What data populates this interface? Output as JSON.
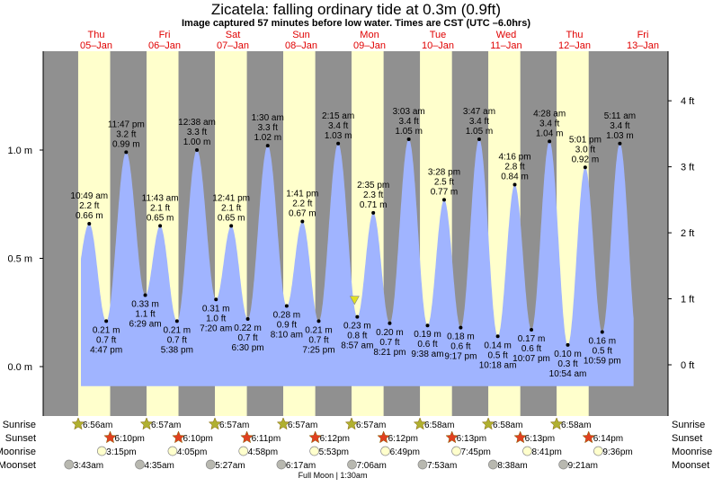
{
  "title": "Zicatela: falling  ordinary tide at 0.3m (0.9ft)",
  "subtitle": "Image captured 57 minutes before low water. Times are CST (UTC –6.0hrs)",
  "colors": {
    "night": "#909090",
    "day": "#ffffcc",
    "water": "#a0b4ff",
    "day_label": "#e00000",
    "sunrise": "#b0b030",
    "sunset": "#e04020",
    "moonrise": "#ffffcc",
    "moonset": "#b8b8b0",
    "marker": "#e0e020"
  },
  "chart_data": {
    "type": "area",
    "title": "Zicatela: falling  ordinary tide at 0.3m (0.9ft)",
    "x_units": "hours since Thu 05-Jan 00:00 CST",
    "days": [
      {
        "dow": "Thu",
        "date": "05–Jan"
      },
      {
        "dow": "Fri",
        "date": "06–Jan"
      },
      {
        "dow": "Sat",
        "date": "07–Jan"
      },
      {
        "dow": "Sun",
        "date": "08–Jan"
      },
      {
        "dow": "Mon",
        "date": "09–Jan"
      },
      {
        "dow": "Tue",
        "date": "10–Jan"
      },
      {
        "dow": "Wed",
        "date": "11–Jan"
      },
      {
        "dow": "Thu",
        "date": "12–Jan"
      },
      {
        "dow": "Fri",
        "date": "13–Jan"
      }
    ],
    "y_left": {
      "unit": "m",
      "ticks": [
        {
          "v": 0.0,
          "label": "0.0 m"
        },
        {
          "v": 0.5,
          "label": "0.5 m"
        },
        {
          "v": 1.0,
          "label": "1.0 m"
        }
      ],
      "range": [
        -0.22,
        1.45
      ]
    },
    "y_right": {
      "unit": "ft",
      "ticks": [
        {
          "v": 0,
          "label": "0 ft"
        },
        {
          "v": 1,
          "label": "1 ft"
        },
        {
          "v": 2,
          "label": "2 ft"
        },
        {
          "v": 3,
          "label": "3 ft"
        },
        {
          "v": 4,
          "label": "4 ft"
        }
      ]
    },
    "extremes": [
      {
        "day": 0,
        "time": "10:49 am",
        "ft": "2.2 ft",
        "m": "0.66 m",
        "v": 0.66,
        "type": "high"
      },
      {
        "day": 0,
        "time": "4:47 pm",
        "ft": "0.7 ft",
        "m": "0.21 m",
        "v": 0.21,
        "type": "low"
      },
      {
        "day": 0,
        "time": "11:47 pm",
        "ft": "3.2 ft",
        "m": "0.99 m",
        "v": 0.99,
        "type": "high"
      },
      {
        "day": 1,
        "time": "6:29 am",
        "ft": "1.1 ft",
        "m": "0.33 m",
        "v": 0.33,
        "type": "low"
      },
      {
        "day": 1,
        "time": "11:43 am",
        "ft": "2.1 ft",
        "m": "0.65 m",
        "v": 0.65,
        "type": "high"
      },
      {
        "day": 1,
        "time": "5:38 pm",
        "ft": "0.7 ft",
        "m": "0.21 m",
        "v": 0.21,
        "type": "low"
      },
      {
        "day": 2,
        "time": "12:38 am",
        "ft": "3.3 ft",
        "m": "1.00 m",
        "v": 1.0,
        "type": "high"
      },
      {
        "day": 2,
        "time": "7:20 am",
        "ft": "1.0 ft",
        "m": "0.31 m",
        "v": 0.31,
        "type": "low"
      },
      {
        "day": 2,
        "time": "12:41 pm",
        "ft": "2.1 ft",
        "m": "0.65 m",
        "v": 0.65,
        "type": "high"
      },
      {
        "day": 2,
        "time": "6:30 pm",
        "ft": "0.7 ft",
        "m": "0.22 m",
        "v": 0.22,
        "type": "low"
      },
      {
        "day": 3,
        "time": "1:30 am",
        "ft": "3.3 ft",
        "m": "1.02 m",
        "v": 1.02,
        "type": "high"
      },
      {
        "day": 3,
        "time": "8:10 am",
        "ft": "0.9 ft",
        "m": "0.28 m",
        "v": 0.28,
        "type": "low"
      },
      {
        "day": 3,
        "time": "1:41 pm",
        "ft": "2.2 ft",
        "m": "0.67 m",
        "v": 0.67,
        "type": "high"
      },
      {
        "day": 3,
        "time": "7:25 pm",
        "ft": "0.7 ft",
        "m": "0.21 m",
        "v": 0.21,
        "type": "low"
      },
      {
        "day": 4,
        "time": "2:15 am",
        "ft": "3.4 ft",
        "m": "1.03 m",
        "v": 1.03,
        "type": "high"
      },
      {
        "day": 4,
        "time": "8:57 am",
        "ft": "0.8 ft",
        "m": "0.23 m",
        "v": 0.23,
        "type": "low"
      },
      {
        "day": 4,
        "time": "2:35 pm",
        "ft": "2.3 ft",
        "m": "0.71 m",
        "v": 0.71,
        "type": "high"
      },
      {
        "day": 4,
        "time": "8:21 pm",
        "ft": "0.7 ft",
        "m": "0.20 m",
        "v": 0.2,
        "type": "low"
      },
      {
        "day": 5,
        "time": "3:03 am",
        "ft": "3.4 ft",
        "m": "1.05 m",
        "v": 1.05,
        "type": "high"
      },
      {
        "day": 5,
        "time": "9:38 am",
        "ft": "0.6 ft",
        "m": "0.19 m",
        "v": 0.19,
        "type": "low"
      },
      {
        "day": 5,
        "time": "3:28 pm",
        "ft": "2.5 ft",
        "m": "0.77 m",
        "v": 0.77,
        "type": "high"
      },
      {
        "day": 5,
        "time": "9:17 pm",
        "ft": "0.6 ft",
        "m": "0.18 m",
        "v": 0.18,
        "type": "low"
      },
      {
        "day": 6,
        "time": "3:47 am",
        "ft": "3.4 ft",
        "m": "1.05 m",
        "v": 1.05,
        "type": "high"
      },
      {
        "day": 6,
        "time": "10:18 am",
        "ft": "0.5 ft",
        "m": "0.14 m",
        "v": 0.14,
        "type": "low"
      },
      {
        "day": 6,
        "time": "4:16 pm",
        "ft": "2.8 ft",
        "m": "0.84 m",
        "v": 0.84,
        "type": "high"
      },
      {
        "day": 6,
        "time": "10:07 pm",
        "ft": "0.6 ft",
        "m": "0.17 m",
        "v": 0.17,
        "type": "low"
      },
      {
        "day": 7,
        "time": "4:28 am",
        "ft": "3.4 ft",
        "m": "1.04 m",
        "v": 1.04,
        "type": "high"
      },
      {
        "day": 7,
        "time": "10:54 am",
        "ft": "0.3 ft",
        "m": "0.10 m",
        "v": 0.1,
        "type": "low"
      },
      {
        "day": 7,
        "time": "5:01 pm",
        "ft": "3.0 ft",
        "m": "0.92 m",
        "v": 0.92,
        "type": "high"
      },
      {
        "day": 7,
        "time": "10:59 pm",
        "ft": "0.5 ft",
        "m": "0.16 m",
        "v": 0.16,
        "type": "low"
      },
      {
        "day": 8,
        "time": "5:11 am",
        "ft": "3.4 ft",
        "m": "1.03 m",
        "v": 1.03,
        "type": "high"
      }
    ],
    "current": {
      "v": 0.3,
      "time_hours": 104.0
    },
    "sun_moon": {
      "labels": {
        "sunrise": "Sunrise",
        "sunset": "Sunset",
        "moonrise": "Moonrise",
        "moonset": "Moonset"
      },
      "sunrise": [
        "6:56am",
        "6:57am",
        "6:57am",
        "6:57am",
        "6:57am",
        "6:58am",
        "6:58am",
        "6:58am"
      ],
      "sunset": [
        "6:10pm",
        "6:10pm",
        "6:11pm",
        "6:12pm",
        "6:12pm",
        "6:13pm",
        "6:13pm",
        "6:14pm"
      ],
      "moonrise": [
        "3:15pm",
        "4:05pm",
        "4:58pm",
        "5:53pm",
        "6:49pm",
        "7:45pm",
        "8:41pm",
        "9:36pm"
      ],
      "moonset": [
        "3:43am",
        "4:35am",
        "5:27am",
        "6:17am",
        "7:06am",
        "7:53am",
        "8:38am",
        "9:21am"
      ]
    },
    "moon_phase": "Full Moon | 1:30am"
  }
}
